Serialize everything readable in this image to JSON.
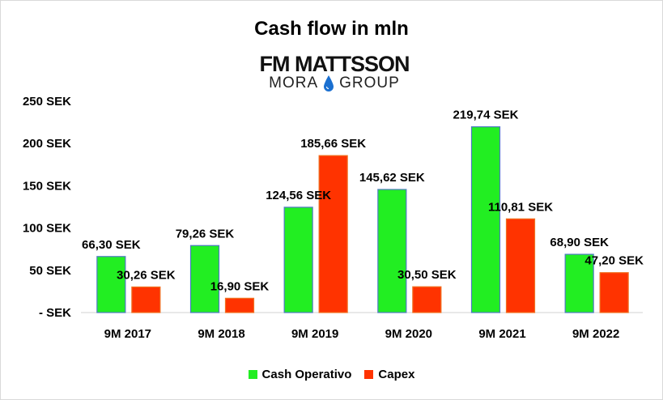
{
  "chart_data": {
    "type": "bar",
    "title": "Cash flow in mln",
    "categories": [
      "9M 2017",
      "9M 2018",
      "9M 2019",
      "9M 2020",
      "9M 2021",
      "9M 2022"
    ],
    "series": [
      {
        "name": "Cash Operativo",
        "color": "#22ee22",
        "values": [
          66.3,
          79.26,
          124.56,
          145.62,
          219.74,
          68.9
        ],
        "labels": [
          "66,30 SEK",
          "79,26 SEK",
          "124,56 SEK",
          "145,62 SEK",
          "219,74 SEK",
          "68,90 SEK"
        ]
      },
      {
        "name": "Capex",
        "color": "#ff3300",
        "values": [
          30.26,
          16.9,
          185.66,
          30.5,
          110.81,
          47.2
        ],
        "labels": [
          "30,26 SEK",
          "16,90 SEK",
          "185,66 SEK",
          "30,50 SEK",
          "110,81 SEK",
          "47,20 SEK"
        ]
      }
    ],
    "ylim": [
      0,
      250
    ],
    "yticks": [
      0,
      50,
      100,
      150,
      200,
      250
    ],
    "ytick_labels": [
      "- SEK",
      "50 SEK",
      "100 SEK",
      "150 SEK",
      "200 SEK",
      "250 SEK"
    ],
    "grid": false,
    "legend_position": "bottom"
  },
  "logo": {
    "line1": "FM MATTSSON",
    "line2_left": "MORA",
    "line2_right": "GROUP",
    "icon": "water-drop-icon",
    "drop_color": "#1a6fd0"
  }
}
